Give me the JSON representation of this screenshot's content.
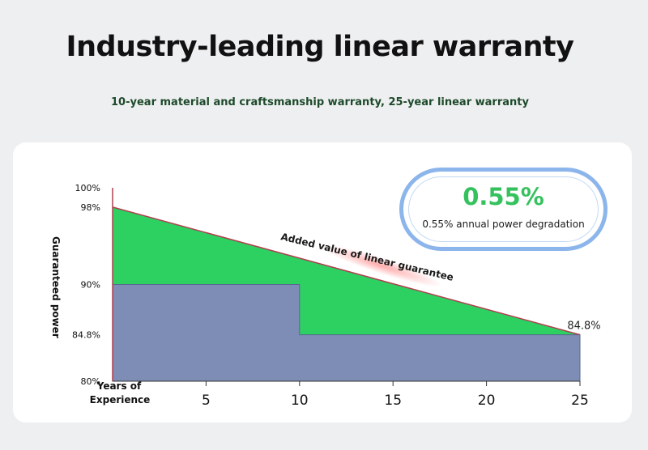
{
  "header": {
    "title": "Industry-leading linear warranty",
    "subtitle": "10-year material and craftsmanship warranty, 25-year linear warranty"
  },
  "badge": {
    "value": "0.55%",
    "caption": "0.55% annual power degradation"
  },
  "colors": {
    "guarantee_area": "#2dd162",
    "industry_area": "#7e8db5",
    "accent_line": "#b04050",
    "badge_border": "#8cb5ec",
    "badge_value": "#35c25e"
  },
  "chart_data": {
    "type": "area",
    "ylabel": "Guaranteed power",
    "xlabel_line1": "Years of",
    "xlabel_line2": "Experience",
    "x_ticks": [
      "5",
      "10",
      "15",
      "20",
      "25"
    ],
    "y_ticks": [
      "100%",
      "98%",
      "90%",
      "84.8%",
      "80%"
    ],
    "xlim": [
      0,
      25
    ],
    "ylim": [
      80,
      100
    ],
    "series": [
      {
        "x": [
          0,
          25
        ],
        "values": [
          98,
          84.8
        ]
      },
      {
        "x": [
          0,
          10,
          10,
          25
        ],
        "values": [
          90,
          90,
          84.8,
          84.8
        ]
      }
    ],
    "annotations": {
      "band_label": "Added value of linear guarantee",
      "end_label": "84.8%"
    }
  }
}
